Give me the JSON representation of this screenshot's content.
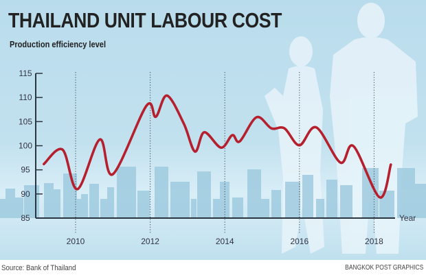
{
  "chart_data": {
    "type": "line",
    "title": "THAILAND UNIT LABOUR COST",
    "subtitle": "Production efficiency level",
    "xlabel": "Year",
    "ylabel": "",
    "xlim": [
      2008.9,
      2018.95
    ],
    "ylim": [
      85,
      115
    ],
    "yticks": [
      85,
      90,
      95,
      100,
      105,
      110,
      115
    ],
    "xticks": [
      2010,
      2012,
      2014,
      2016,
      2018
    ],
    "grid": "vertical dotted lines at x ticks",
    "series": [
      {
        "name": "Unit labour cost",
        "color": "#b5202e",
        "x": [
          2009.15,
          2009.65,
          2010.05,
          2010.65,
          2011.0,
          2011.9,
          2012.15,
          2012.45,
          2012.9,
          2013.2,
          2013.45,
          2013.9,
          2014.2,
          2014.4,
          2014.85,
          2015.25,
          2015.6,
          2016.0,
          2016.45,
          2017.1,
          2017.45,
          2018.15,
          2018.45
        ],
        "y": [
          96.2,
          99.2,
          91.0,
          101.3,
          94.1,
          108.3,
          106.0,
          110.4,
          104.6,
          98.8,
          102.8,
          99.6,
          102.2,
          100.9,
          105.9,
          103.6,
          103.6,
          100.1,
          103.8,
          96.5,
          99.9,
          89.3,
          96.1
        ]
      }
    ]
  },
  "footer": {
    "source": "Source: Bank of Thailand",
    "credit": "BANGKOK POST GRAPHICS"
  },
  "colors": {
    "background": "#bcdeed",
    "line": "#b5202e",
    "axis": "#2a3540",
    "skyline": "#9fcbe0"
  }
}
